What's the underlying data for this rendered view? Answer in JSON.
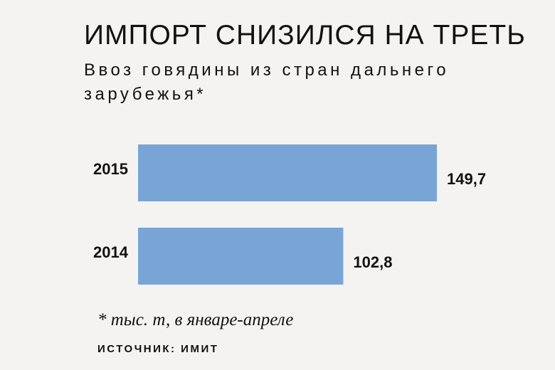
{
  "chart_data": {
    "type": "hbar",
    "title": "ИМПОРТ СНИЗИЛСЯ НА ТРЕТЬ",
    "subtitle": "Ввоз говядины из стран дальнего зарубежья*",
    "categories": [
      "2015",
      "2014"
    ],
    "values": [
      149.7,
      102.8
    ],
    "value_labels": [
      "149,7",
      "102,8"
    ],
    "color": "#78a5d6",
    "footnote": "* тыс. т, в январе-апреле",
    "source": "ИСТОЧНИК: ИМИТ"
  }
}
